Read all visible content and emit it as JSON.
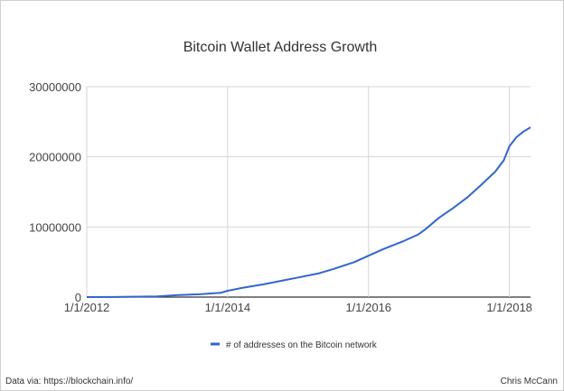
{
  "chart_data": {
    "type": "line",
    "title": "Bitcoin Wallet Address Growth",
    "xlabel": "",
    "ylabel": "",
    "ylim": [
      0,
      30000000
    ],
    "yticks": [
      "0",
      "10000000",
      "20000000",
      "30000000"
    ],
    "xticks": [
      "1/1/2012",
      "1/1/2014",
      "1/1/2016",
      "1/1/2018"
    ],
    "xlim": [
      2012.0,
      2018.3
    ],
    "grid": true,
    "legend_position": "bottom",
    "series": [
      {
        "name": "# of addresses on the Bitcoin network",
        "color": "#3366cc",
        "x": [
          2012.0,
          2012.5,
          2013.0,
          2013.3,
          2013.6,
          2013.9,
          2014.0,
          2014.2,
          2014.5,
          2014.8,
          2015.0,
          2015.3,
          2015.5,
          2015.8,
          2016.0,
          2016.2,
          2016.5,
          2016.7,
          2016.8,
          2017.0,
          2017.2,
          2017.4,
          2017.6,
          2017.8,
          2017.92,
          2018.0,
          2018.1,
          2018.2,
          2018.3
        ],
        "values": [
          0,
          30000,
          100000,
          300000,
          400000,
          600000,
          900000,
          1300000,
          1800000,
          2400000,
          2800000,
          3400000,
          4000000,
          5000000,
          5900000,
          6800000,
          8000000,
          8900000,
          9600000,
          11300000,
          12700000,
          14200000,
          16000000,
          17900000,
          19500000,
          21500000,
          22800000,
          23600000,
          24200000
        ]
      }
    ]
  },
  "footer": {
    "left": "Data via: https://blockchain.info/",
    "right": "Chris McCann"
  }
}
